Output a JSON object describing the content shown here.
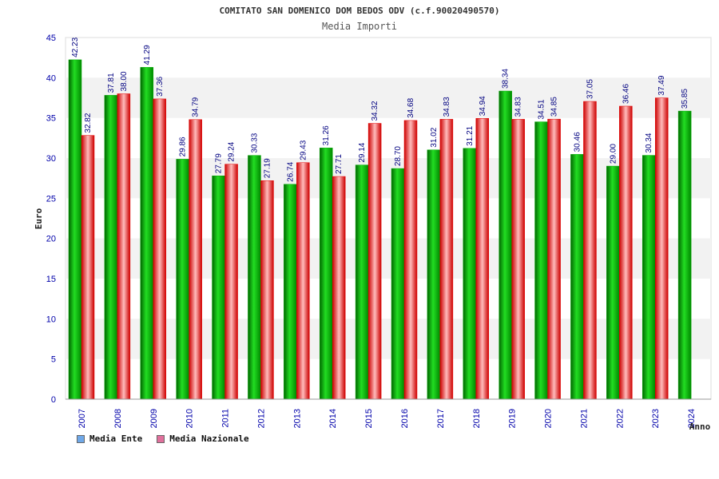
{
  "chart_data": {
    "type": "bar",
    "title": "COMITATO SAN DOMENICO DOM BEDOS ODV (c.f.90020490570)",
    "subtitle": "Media Importi",
    "ylabel": "Euro",
    "xlabel": "Anno",
    "ylim": [
      0,
      45
    ],
    "yticks": [
      "0",
      "5",
      "10",
      "15",
      "20",
      "25",
      "30",
      "35",
      "40",
      "45"
    ],
    "grid": "horizontal bands",
    "legend_position": "bottom-left",
    "categories": [
      "2007",
      "2008",
      "2009",
      "2010",
      "2011",
      "2012",
      "2013",
      "2014",
      "2015",
      "2016",
      "2017",
      "2018",
      "2019",
      "2020",
      "2021",
      "2022",
      "2023",
      "2024"
    ],
    "series": [
      {
        "name": "Media Ente",
        "color": "#00aa00",
        "legend_color": "#6fa8e8",
        "values": [
          42.23,
          37.81,
          41.29,
          29.86,
          27.79,
          30.33,
          26.74,
          31.26,
          29.14,
          28.7,
          31.02,
          31.21,
          38.34,
          34.51,
          30.46,
          29.0,
          30.34,
          35.85
        ],
        "labels": [
          "42.23",
          "37.81",
          "41.29",
          "29.86",
          "27.79",
          "30.33",
          "26.74",
          "31.26",
          "29.14",
          "28.70",
          "31.02",
          "31.21",
          "38.34",
          "34.51",
          "30.46",
          "29.00",
          "30.34",
          "35.85"
        ]
      },
      {
        "name": "Media Nazionale",
        "color": "#e60000",
        "legend_color": "#e0709c",
        "values": [
          32.82,
          38.0,
          37.36,
          34.79,
          29.24,
          27.19,
          29.43,
          27.71,
          34.32,
          34.68,
          34.83,
          34.94,
          34.83,
          34.85,
          37.05,
          36.46,
          37.49,
          null
        ],
        "labels": [
          "32.82",
          "38.00",
          "37.36",
          "34.79",
          "29.24",
          "27.19",
          "29.43",
          "27.71",
          "34.32",
          "34.68",
          "34.83",
          "34.94",
          "34.83",
          "34.85",
          "37.05",
          "36.46",
          "37.49",
          ""
        ]
      }
    ]
  }
}
